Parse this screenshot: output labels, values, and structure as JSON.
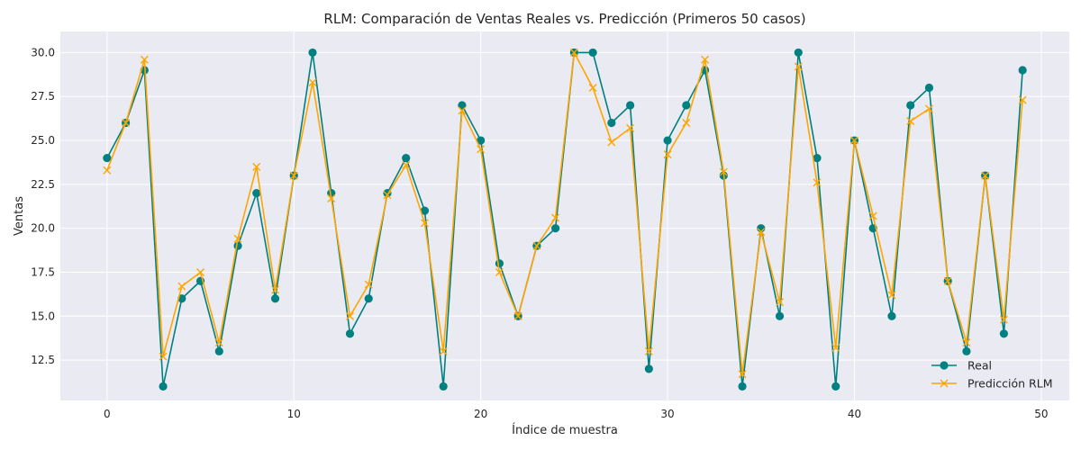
{
  "chart_data": {
    "type": "line",
    "title": "RLM: Comparación de Ventas Reales vs. Predicción (Primeros 50 casos)",
    "xlabel": "Índice de muestra",
    "ylabel": "Ventas",
    "xlim": [
      -2.5,
      51.5
    ],
    "ylim": [
      10.2,
      31.2
    ],
    "x_ticks": [
      0,
      10,
      20,
      30,
      40,
      50
    ],
    "y_ticks": [
      12.5,
      15.0,
      17.5,
      20.0,
      22.5,
      25.0,
      27.5,
      30.0
    ],
    "x_tick_labels": [
      "0",
      "10",
      "20",
      "30",
      "40",
      "50"
    ],
    "y_tick_labels": [
      "12.5",
      "15.0",
      "17.5",
      "20.0",
      "22.5",
      "25.0",
      "27.5",
      "30.0"
    ],
    "grid": true,
    "legend_position": "bottom-right",
    "x": [
      0,
      1,
      2,
      3,
      4,
      5,
      6,
      7,
      8,
      9,
      10,
      11,
      12,
      13,
      14,
      15,
      16,
      17,
      18,
      19,
      20,
      21,
      22,
      23,
      24,
      25,
      26,
      27,
      28,
      29,
      30,
      31,
      32,
      33,
      34,
      35,
      36,
      37,
      38,
      39,
      40,
      41,
      42,
      43,
      44,
      45,
      46,
      47,
      48,
      49
    ],
    "series": [
      {
        "name": "Real",
        "color": "#008080",
        "marker": "circle",
        "values": [
          24,
          26,
          29,
          11,
          16,
          17,
          13,
          19,
          22,
          16,
          23,
          30,
          22,
          14,
          16,
          22,
          24,
          21,
          11,
          27,
          25,
          18,
          15,
          19,
          20,
          30,
          30,
          26,
          27,
          12,
          25,
          27,
          29,
          23,
          11,
          20,
          15,
          30,
          24,
          11,
          25,
          20,
          15,
          27,
          28,
          17,
          13,
          23,
          14,
          29
        ]
      },
      {
        "name": "Predicción RLM",
        "color": "#FFA500",
        "marker": "x",
        "values": [
          23.3,
          26,
          29.6,
          12.7,
          16.7,
          17.5,
          13.5,
          19.4,
          23.5,
          16.5,
          23,
          28.3,
          21.7,
          15,
          16.8,
          21.9,
          23.6,
          20.3,
          13,
          26.7,
          24.5,
          17.5,
          15,
          19,
          20.6,
          30,
          28,
          24.9,
          25.7,
          13,
          24.2,
          26,
          29.6,
          23.2,
          11.7,
          19.8,
          15.8,
          29.2,
          22.6,
          13.2,
          25,
          20.7,
          16.2,
          26.1,
          26.8,
          17,
          13.5,
          23,
          14.8,
          27.3
        ]
      }
    ]
  }
}
